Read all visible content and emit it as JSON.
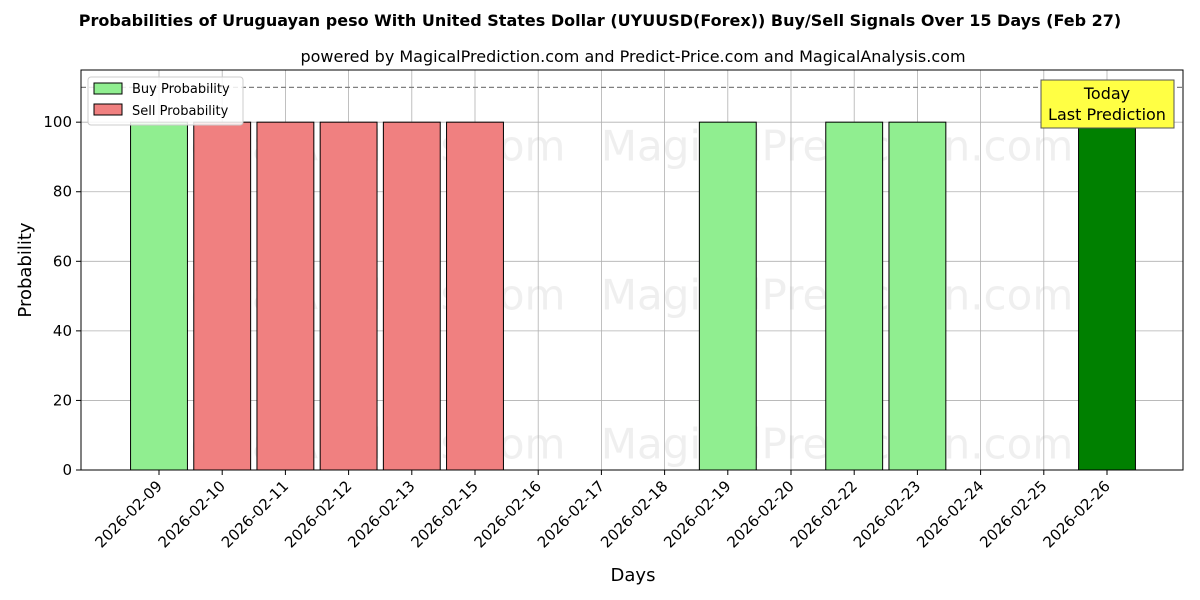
{
  "chart_data": {
    "type": "bar",
    "title": "Probabilities of Uruguayan peso With United States Dollar (UYUUSD(Forex)) Buy/Sell Signals Over 15 Days (Feb 27)",
    "subtitle": "powered by MagicalPrediction.com and Predict-Price.com and MagicalAnalysis.com",
    "xlabel": "Days",
    "ylabel": "Probability",
    "ylim": [
      0,
      115
    ],
    "yticks": [
      0,
      20,
      40,
      60,
      80,
      100
    ],
    "grid": true,
    "legend_position": "top-left",
    "reference_line": 110,
    "categories": [
      "2026-02-09",
      "2026-02-10",
      "2026-02-11",
      "2026-02-12",
      "2026-02-13",
      "2026-02-15",
      "2026-02-16",
      "2026-02-17",
      "2026-02-18",
      "2026-02-19",
      "2026-02-20",
      "2026-02-22",
      "2026-02-23",
      "2026-02-24",
      "2026-02-25",
      "2026-02-26"
    ],
    "series": [
      {
        "name": "Buy Probability",
        "color": "#90ee90",
        "values": [
          100,
          0,
          0,
          0,
          0,
          0,
          0,
          0,
          0,
          100,
          0,
          100,
          100,
          0,
          0,
          100
        ]
      },
      {
        "name": "Sell Probability",
        "color": "#f08080",
        "values": [
          0,
          100,
          100,
          100,
          100,
          100,
          0,
          0,
          0,
          0,
          0,
          0,
          0,
          0,
          0,
          0
        ]
      }
    ],
    "highlight": {
      "category": "2026-02-26",
      "color": "#008000"
    },
    "annotation": {
      "lines": [
        "Today",
        "Last Prediction"
      ],
      "color": "#ffff44"
    },
    "watermarks": [
      "MagicalAnalysis.com",
      "MagicalPrediction.com"
    ]
  }
}
